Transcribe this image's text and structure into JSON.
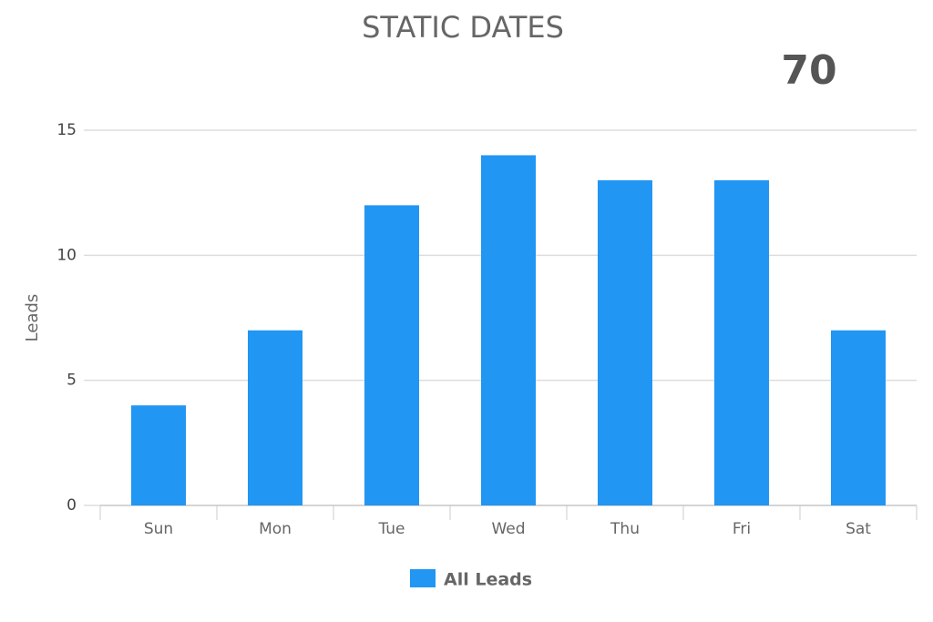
{
  "chart_data": {
    "type": "bar",
    "title": "STATIC DATES",
    "total": 70,
    "y_label": "Leads",
    "categories": [
      "Sun",
      "Mon",
      "Tue",
      "Wed",
      "Thu",
      "Fri",
      "Sat"
    ],
    "series": [
      {
        "name": "All Leads",
        "color": "#2196f3",
        "values": [
          4,
          7,
          12,
          14,
          13,
          13,
          7
        ]
      }
    ],
    "ylim": [
      0,
      15
    ],
    "yticks": [
      0,
      5,
      10,
      15
    ],
    "grid": true,
    "legend": "bottom"
  }
}
